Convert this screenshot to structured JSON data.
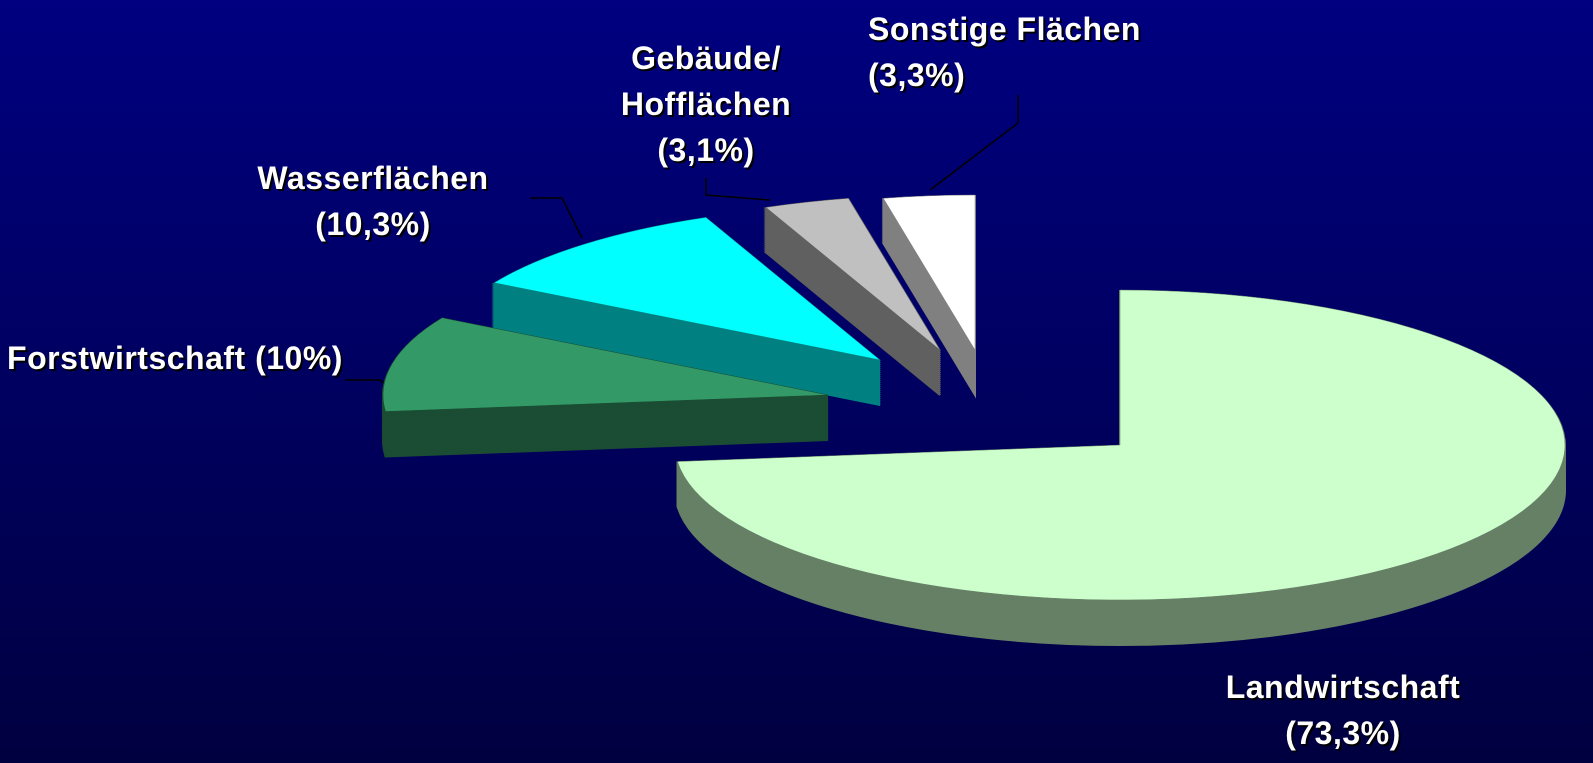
{
  "chart_data": {
    "type": "pie",
    "categories": [
      "Landwirtschaft",
      "Forstwirtschaft",
      "Wasserflächen",
      "Gebäude/ Hofflächen",
      "Sonstige Flächen"
    ],
    "values": [
      73.3,
      10,
      10.3,
      3.1,
      3.3
    ],
    "value_labels": [
      "(73,3%)",
      "(10%)",
      "(10,3%)",
      "(3,1%)",
      "(3,3%)"
    ],
    "colors": [
      "#ccffcc",
      "#339966",
      "#00ffff",
      "#c0c0c0",
      "#ffffff"
    ]
  }
}
